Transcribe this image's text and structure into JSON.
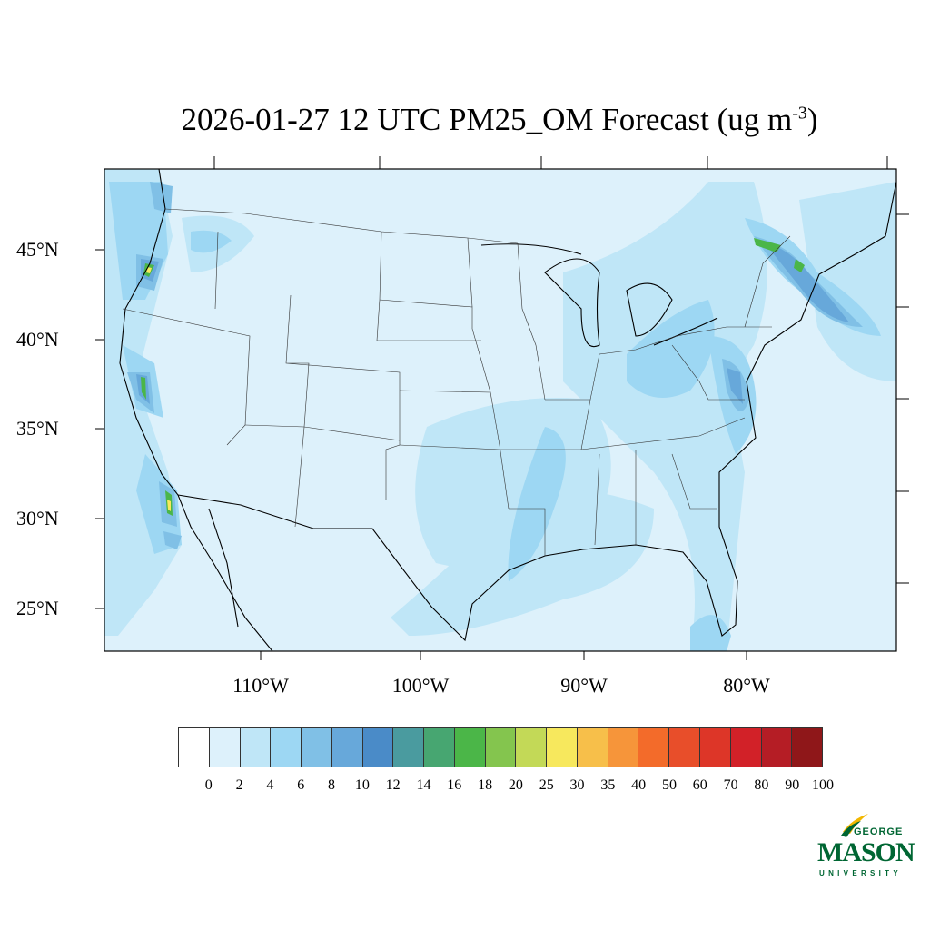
{
  "title": {
    "main": "2026-01-27 12 UTC PM25_OM Forecast (ug m",
    "exponent": "-3",
    "close": ")"
  },
  "lat_labels": [
    "45°N",
    "40°N",
    "35°N",
    "30°N",
    "25°N"
  ],
  "lon_labels": [
    "110°W",
    "100°W",
    "90°W",
    "80°W"
  ],
  "colorbar": {
    "labels": [
      "0",
      "2",
      "4",
      "6",
      "8",
      "10",
      "12",
      "14",
      "16",
      "18",
      "20",
      "25",
      "30",
      "35",
      "40",
      "50",
      "60",
      "70",
      "80",
      "90",
      "100"
    ],
    "colors": [
      "#ffffff",
      "#ddf1fb",
      "#bfe6f7",
      "#9dd7f3",
      "#80c0e6",
      "#67a8da",
      "#4a8bc8",
      "#4a9b9f",
      "#47a671",
      "#4bb648",
      "#84c54e",
      "#c3d957",
      "#f7e85d",
      "#f7bf4a",
      "#f6953a",
      "#f36b2a",
      "#e84e2a",
      "#dd3628",
      "#d22128",
      "#b51d25",
      "#8f1719"
    ]
  },
  "logo": {
    "top": "GEORGE",
    "main": "MASON",
    "bottom": "UNIVERSITY"
  }
}
